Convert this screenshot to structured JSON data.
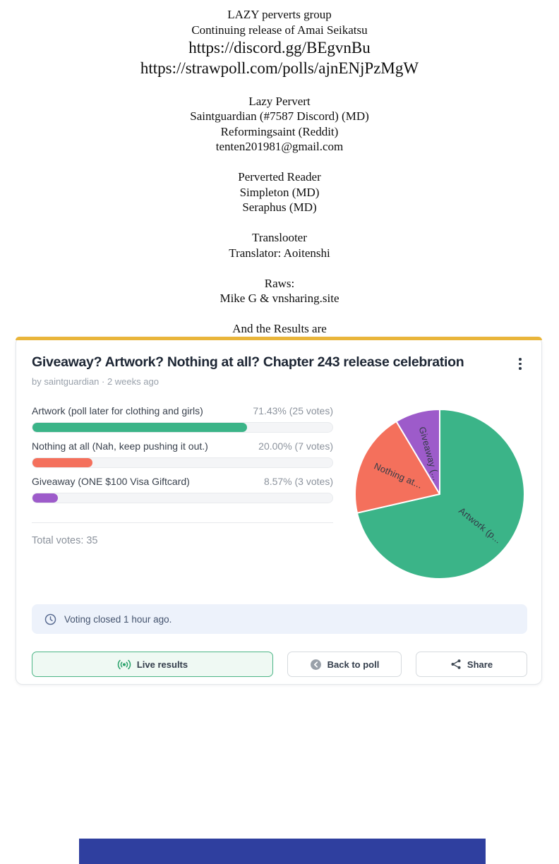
{
  "credits": {
    "group_name": "LAZY perverts group",
    "subtitle": "Continuing release of Amai Seikatsu",
    "discord_url": "https://discord.gg/BEgvnBu",
    "poll_url": "https://strawpoll.com/polls/ajnENjPzMgW",
    "lazy_pervert_heading": "Lazy Pervert",
    "lazy_pervert_1": "Saintguardian (#7587 Discord) (MD)",
    "lazy_pervert_2": "Reformingsaint (Reddit)",
    "lazy_pervert_3": "tenten201981@gmail.com",
    "perverted_reader_heading": "Perverted Reader",
    "perverted_reader_1": "Simpleton (MD)",
    "perverted_reader_2": "Seraphus (MD)",
    "translooter_heading": "Translooter",
    "translooter_1": "Translator: Aoitenshi",
    "raws_heading": "Raws:",
    "raws_1": "Mike G & vnsharing.site",
    "results_line": "And the Results are"
  },
  "poll": {
    "title": "Giveaway? Artwork? Nothing at all? Chapter 243 release celebration",
    "byline": "by saintguardian · 2 weeks ago",
    "options": [
      {
        "label": "Artwork (poll later for clothing and girls)",
        "result": "71.43% (25 votes)"
      },
      {
        "label": "Nothing at all (Nah, keep pushing it out.)",
        "result": "20.00% (7 votes)"
      },
      {
        "label": "Giveaway (ONE $100 Visa Giftcard)",
        "result": "8.57% (3 votes)"
      }
    ],
    "total_votes_label": "Total votes: 35",
    "closed_notice": "Voting closed 1 hour ago.",
    "buttons": {
      "live": "Live results",
      "back": "Back to poll",
      "share": "Share"
    }
  },
  "chart_data": {
    "type": "pie",
    "title": "Giveaway? Artwork? Nothing at all? Chapter 243 release celebration",
    "categories": [
      "Artwork (poll later for clothing and girls)",
      "Nothing at all (Nah, keep pushing it out.)",
      "Giveaway (ONE $100 Visa Giftcard)"
    ],
    "values": [
      71.43,
      20.0,
      8.57
    ],
    "votes": [
      25,
      7,
      3
    ],
    "total_votes": 35,
    "colors": [
      "#3bb488",
      "#f4705c",
      "#9d5bca"
    ],
    "pie_labels": [
      "Artwork (p...",
      "Nothing at...",
      "Giveaway (..."
    ],
    "legend_position": "none",
    "start_angle_deg": 0,
    "direction": "clockwise"
  },
  "colors": {
    "accent_top": "#e9b53a",
    "banner_bg": "#edf2fb",
    "bottom_bar": "#2f3f9f"
  }
}
